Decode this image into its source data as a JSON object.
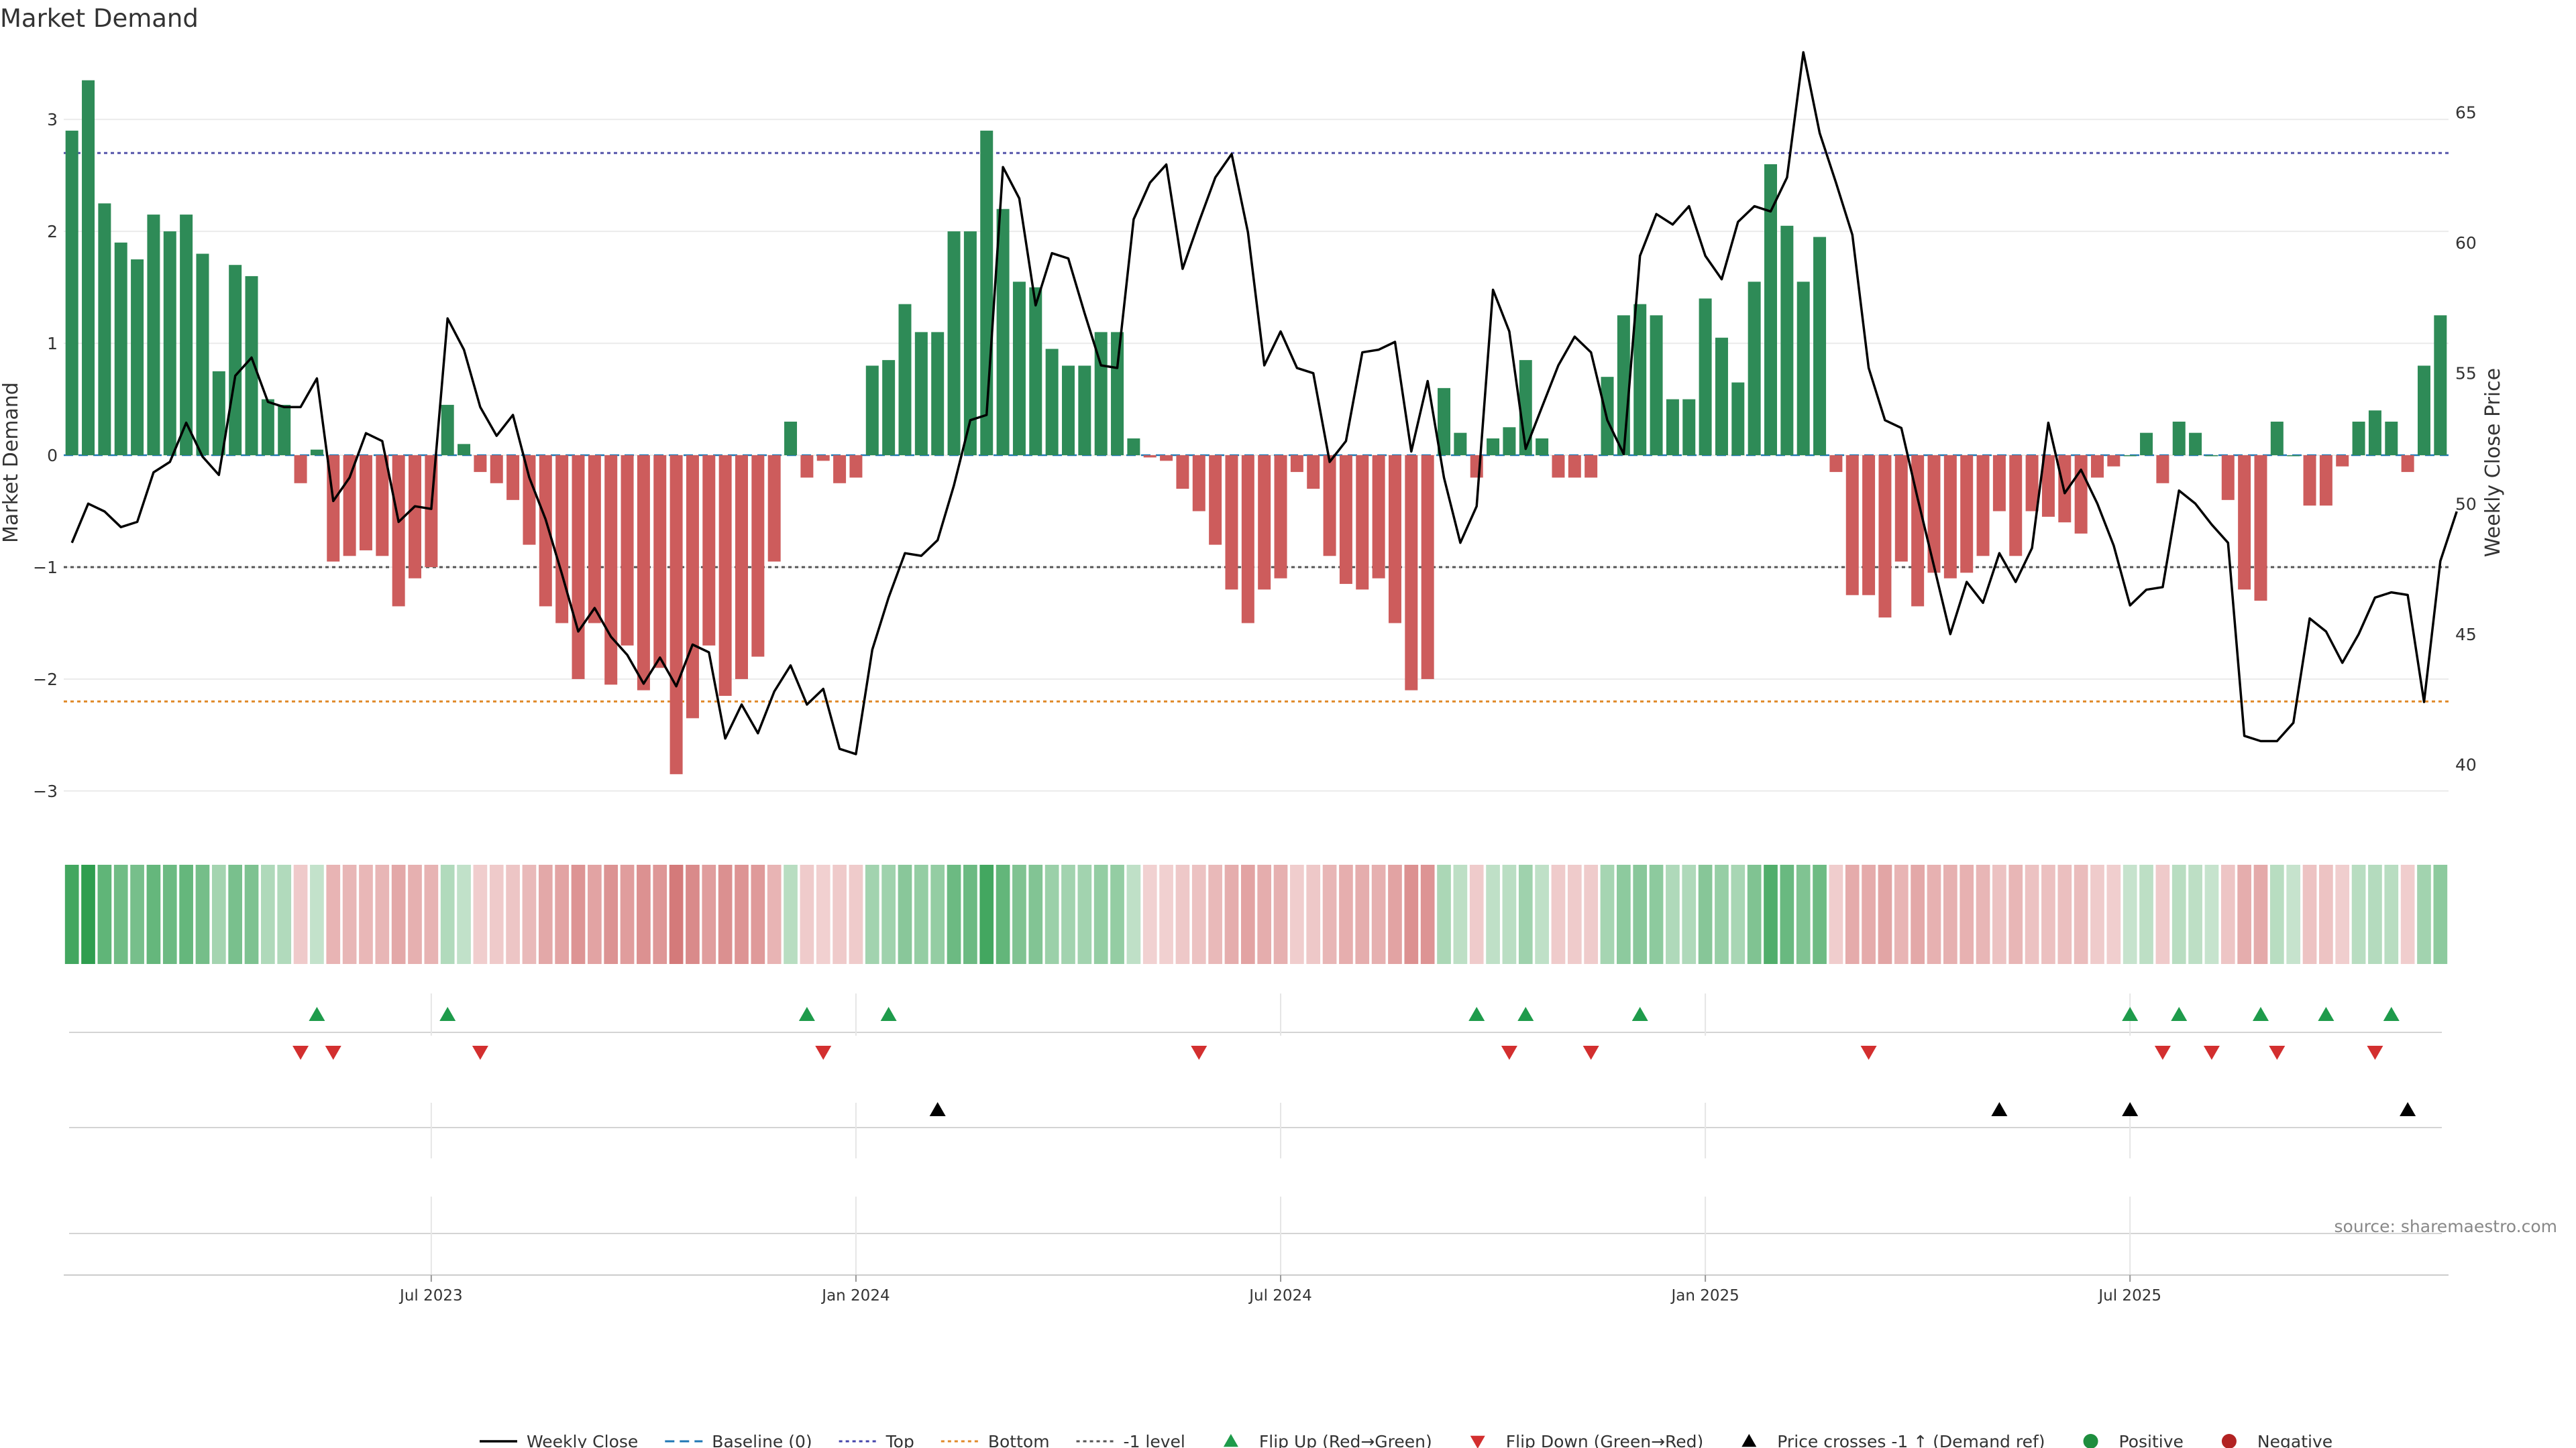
{
  "chart_data": {
    "type": "bar",
    "title": "Market Demand",
    "ylabel": "Market Demand",
    "y2label": "Weekly Close Price",
    "ylim": [
      -3.3,
      3.6
    ],
    "y_ticks": [
      3,
      2,
      1,
      0,
      -1,
      -2,
      -3
    ],
    "y_tick_labels": [
      "3",
      "2",
      "1",
      "0",
      "−1",
      "−2",
      "−3"
    ],
    "y2lim": [
      37.7,
      67.3
    ],
    "y2_ticks": [
      65,
      60,
      55,
      50,
      45,
      40
    ],
    "y2_tick_labels": [
      "65",
      "60",
      "55",
      "50",
      "45",
      "40"
    ],
    "x_ticks": [
      {
        "label": "Jul 2023",
        "week": 22
      },
      {
        "label": "Jan 2024",
        "week": 48
      },
      {
        "label": "Jul 2024",
        "week": 74
      },
      {
        "label": "Jan 2025",
        "week": 100
      },
      {
        "label": "Jul 2025",
        "week": 126
      }
    ],
    "reference_lines": {
      "top": 2.7,
      "bottom": -2.2,
      "minus_one": -1,
      "baseline": 0
    },
    "series": [
      {
        "name": "Market Demand",
        "values": [
          2.9,
          3.35,
          2.25,
          1.9,
          1.75,
          2.15,
          2.0,
          2.15,
          1.8,
          0.75,
          1.7,
          1.6,
          0.5,
          0.45,
          -0.25,
          0.05,
          -0.95,
          -0.9,
          -0.85,
          -0.9,
          -1.35,
          -1.1,
          -1.0,
          0.45,
          0.1,
          -0.15,
          -0.25,
          -0.4,
          -0.8,
          -1.35,
          -1.5,
          -2.0,
          -1.5,
          -2.05,
          -1.7,
          -2.1,
          -1.9,
          -2.85,
          -2.35,
          -1.7,
          -2.15,
          -2.0,
          -1.8,
          -0.95,
          0.3,
          -0.2,
          -0.05,
          -0.25,
          -0.2,
          0.8,
          0.85,
          1.35,
          1.1,
          1.1,
          2.0,
          2.0,
          2.9,
          2.2,
          1.55,
          1.5,
          0.95,
          0.8,
          0.8,
          1.1,
          1.1,
          0.15,
          -0.02,
          -0.05,
          -0.3,
          -0.5,
          -0.8,
          -1.2,
          -1.5,
          -1.2,
          -1.1,
          -0.15,
          -0.3,
          -0.9,
          -1.15,
          -1.2,
          -1.1,
          -1.5,
          -2.1,
          -2.0,
          0.6,
          0.2,
          -0.2,
          0.15,
          0.25,
          0.85,
          0.15,
          -0.2,
          -0.2,
          -0.2,
          0.7,
          1.25,
          1.35,
          1.25,
          0.5,
          0.5,
          1.4,
          1.05,
          0.65,
          1.55,
          2.6,
          2.05,
          1.55,
          1.95,
          -0.15,
          -1.25,
          -1.25,
          -1.45,
          -0.95,
          -1.35,
          -1.05,
          -1.1,
          -1.05,
          -0.9,
          -0.5,
          -0.9,
          -0.5,
          -0.55,
          -0.6,
          -0.7,
          -0.2,
          -0.1,
          0.0,
          0.2,
          -0.25,
          0.3,
          0.2,
          0.0,
          -0.4,
          -1.2,
          -1.3,
          0.3,
          0.0,
          -0.45,
          -0.45,
          -0.1,
          0.3,
          0.4,
          0.3,
          -0.15,
          0.8,
          1.25
        ]
      },
      {
        "name": "Weekly Close",
        "values": [
          48.5,
          50.0,
          49.7,
          49.1,
          49.3,
          51.2,
          51.6,
          53.1,
          51.8,
          51.1,
          54.9,
          55.6,
          53.9,
          53.7,
          53.7,
          54.8,
          50.1,
          51.0,
          52.7,
          52.4,
          49.3,
          49.9,
          49.8,
          57.1,
          55.9,
          53.7,
          52.6,
          53.4,
          51.0,
          49.4,
          47.3,
          45.1,
          46.0,
          44.9,
          44.2,
          43.1,
          44.1,
          43.0,
          44.6,
          44.3,
          41.0,
          42.3,
          41.2,
          42.8,
          43.8,
          42.3,
          42.9,
          40.6,
          40.4,
          44.4,
          46.4,
          48.1,
          48.0,
          48.6,
          50.7,
          53.2,
          53.4,
          62.9,
          61.7,
          57.6,
          59.6,
          59.4,
          57.3,
          55.3,
          55.2,
          60.9,
          62.3,
          63.0,
          59.0,
          60.8,
          62.5,
          63.4,
          60.4,
          55.3,
          56.6,
          55.2,
          55.0,
          51.6,
          52.4,
          55.8,
          55.9,
          56.2,
          52.0,
          54.7,
          51.0,
          48.5,
          49.9,
          58.2,
          56.6,
          52.1,
          53.7,
          55.3,
          56.4,
          55.8,
          53.2,
          51.9,
          59.5,
          61.1,
          60.7,
          61.4,
          59.5,
          58.6,
          60.8,
          61.4,
          61.2,
          62.5,
          67.3,
          64.2,
          62.3,
          60.3,
          55.2,
          53.2,
          52.9,
          50.2,
          47.6,
          45.0,
          47.0,
          46.2,
          48.1,
          47.0,
          48.3,
          53.1,
          50.4,
          51.3,
          50.0,
          48.4,
          46.1,
          46.7,
          46.8,
          50.5,
          50.0,
          49.2,
          48.5,
          41.1,
          40.9,
          40.9,
          41.6,
          45.6,
          45.1,
          43.9,
          45.0,
          46.4,
          46.6,
          46.5,
          42.4,
          47.8,
          49.7
        ]
      }
    ],
    "flip_up_weeks": [
      15,
      23,
      45,
      50,
      86,
      89,
      96,
      126,
      129,
      134,
      138,
      142
    ],
    "flip_down_weeks": [
      14,
      16,
      25,
      46,
      69,
      88,
      93,
      110,
      128,
      131,
      135,
      141
    ],
    "price_cross_weeks": [
      53,
      118,
      126,
      143
    ],
    "legend": [
      {
        "label": "Weekly Close",
        "marker": "line",
        "color": "#000000"
      },
      {
        "label": "Baseline (0)",
        "marker": "dash",
        "color": "#1f77b4"
      },
      {
        "label": "Top",
        "marker": "dot",
        "color": "#4444aa"
      },
      {
        "label": "Bottom",
        "marker": "dot",
        "color": "#e08a2a"
      },
      {
        "label": "-1 level",
        "marker": "dot",
        "color": "#555555"
      },
      {
        "label": "Flip Up (Red→Green)",
        "marker": "tri-up",
        "color": "#1e9b4b"
      },
      {
        "label": "Flip Down (Green→Red)",
        "marker": "tri-down",
        "color": "#d32f2f"
      },
      {
        "label": "Price crosses -1 ↑ (Demand ref)",
        "marker": "tri-up",
        "color": "#000000"
      },
      {
        "label": "Positive",
        "marker": "circle",
        "color": "#1e8e3e"
      },
      {
        "label": "Negative",
        "marker": "circle",
        "color": "#b22222"
      }
    ],
    "legend_position": "bottom-center",
    "source": "source: sharemaestro.com"
  },
  "colors": {
    "positive": "#2e8b57",
    "negative": "#cd5c5c"
  }
}
